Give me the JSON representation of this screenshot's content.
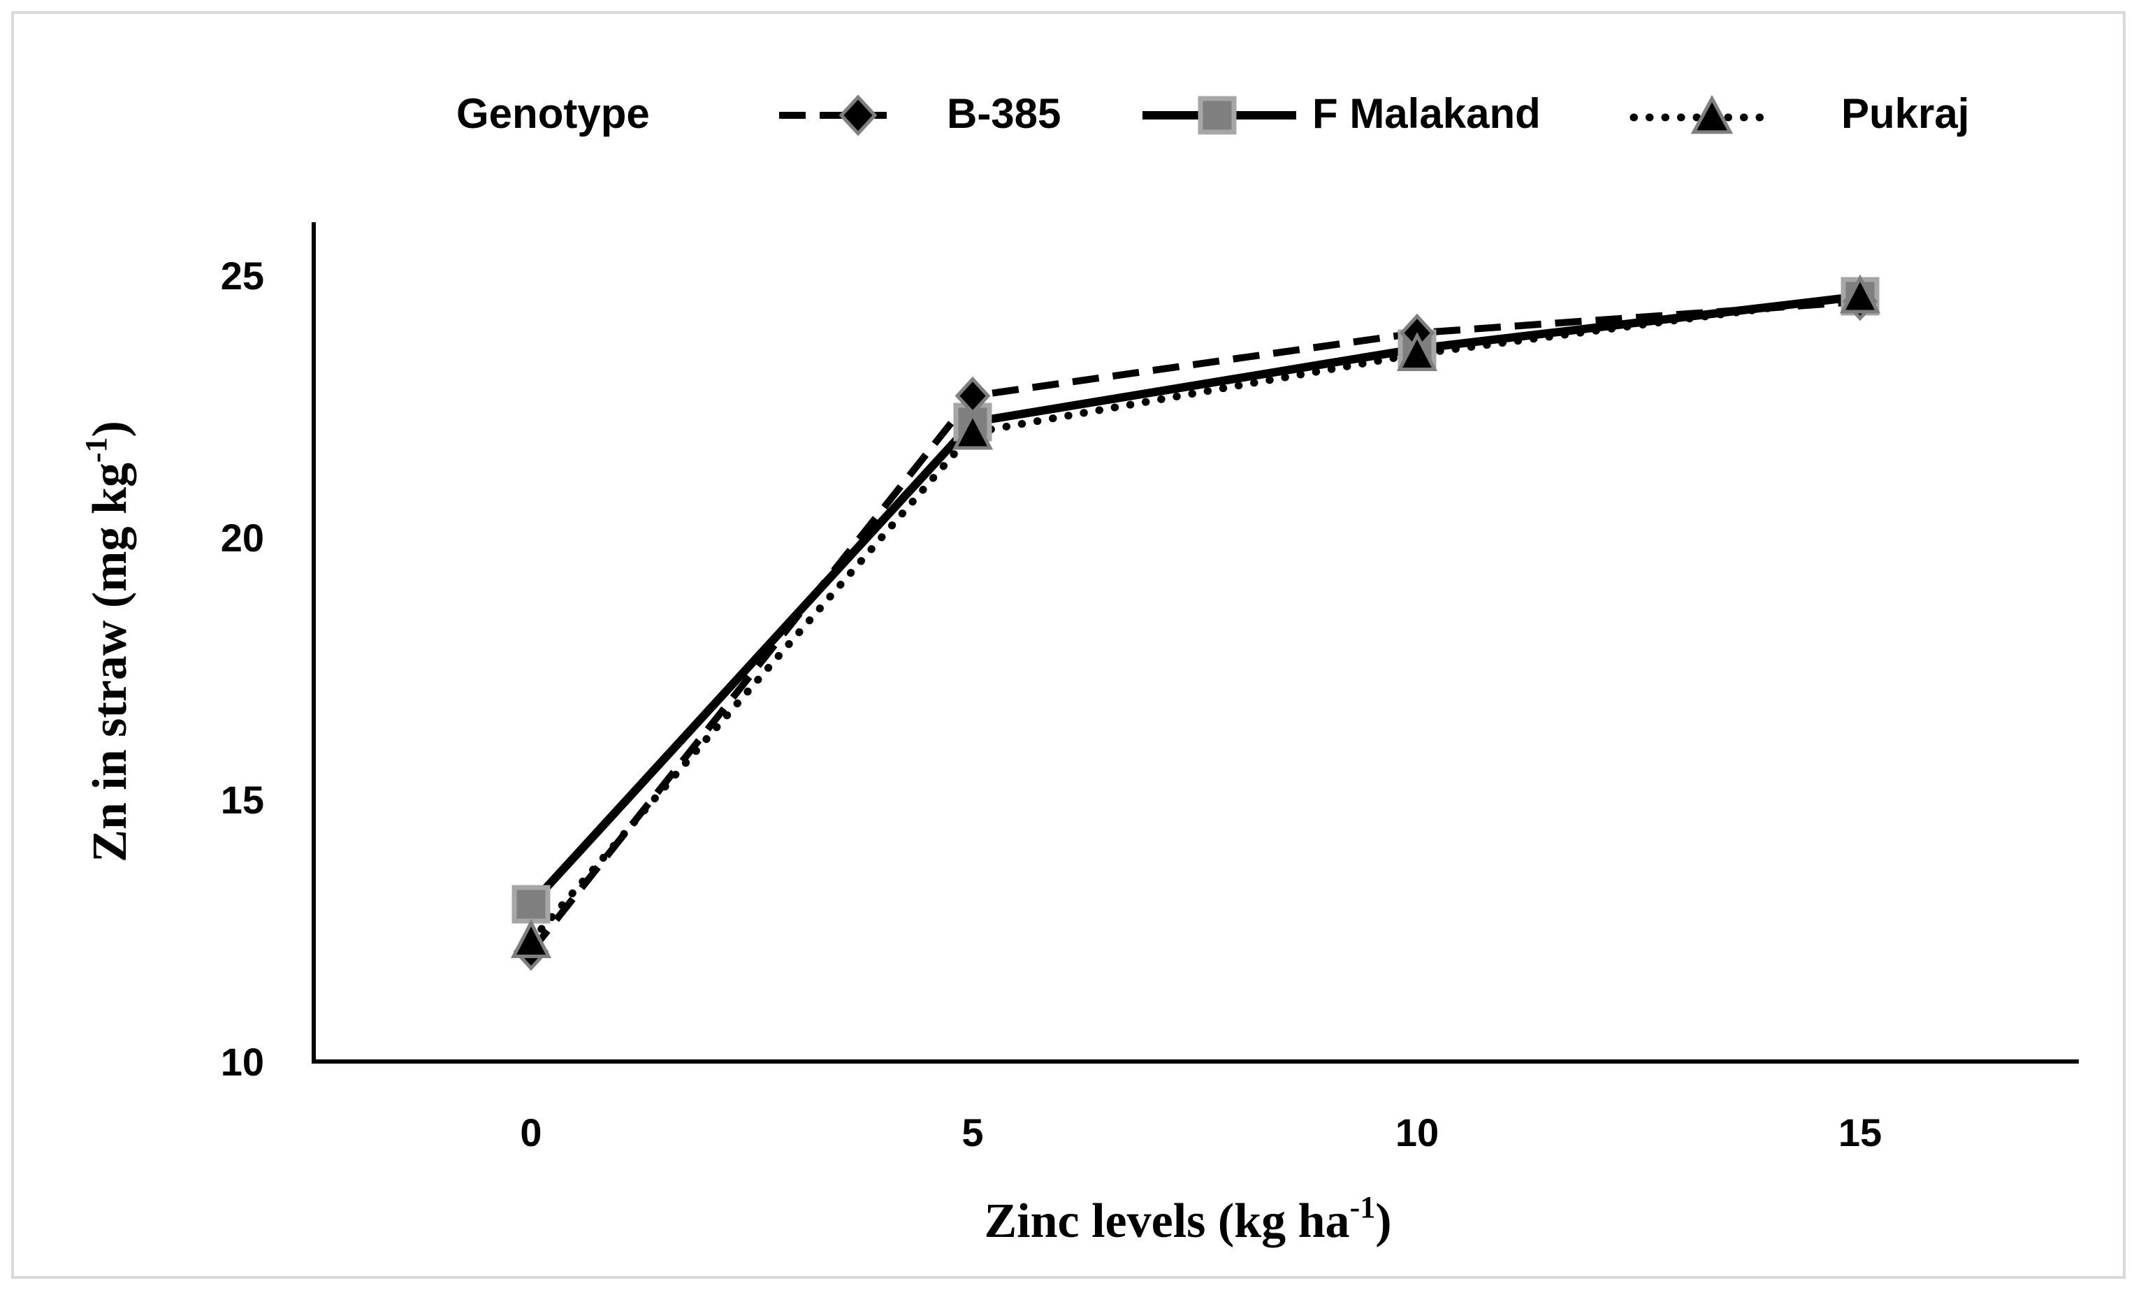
{
  "chart_data": {
    "type": "line",
    "title": "",
    "x": [
      0,
      5,
      10,
      15
    ],
    "x_tick_labels": [
      "0",
      "5",
      "10",
      "15"
    ],
    "y_tick_labels": [
      "10",
      "15",
      "20",
      "25"
    ],
    "ylim": [
      10,
      26
    ],
    "xlabel_main": "Zinc levels (kg ha",
    "xlabel_sup": "-1",
    "xlabel_end": ")",
    "ylabel_main": "Zn in straw (mg kg",
    "ylabel_sup": "-1",
    "ylabel_end": ")",
    "legend_title": "Genotype",
    "legend_position": "top",
    "grid": false,
    "series": [
      {
        "name": "B-385",
        "values": [
          12.1,
          22.7,
          23.9,
          24.5
        ],
        "line": "dashed",
        "marker": "diamond"
      },
      {
        "name": "F Malakand",
        "values": [
          13.0,
          22.2,
          23.6,
          24.6
        ],
        "line": "solid",
        "marker": "square"
      },
      {
        "name": "Pukraj",
        "values": [
          12.3,
          22.0,
          23.5,
          24.6
        ],
        "line": "dotted",
        "marker": "triangle"
      }
    ],
    "colors": {
      "line": "#000000",
      "marker_fill": "#7f7f7f",
      "marker_edge": "#a6a6a6",
      "triangle_fill": "#000000"
    }
  }
}
